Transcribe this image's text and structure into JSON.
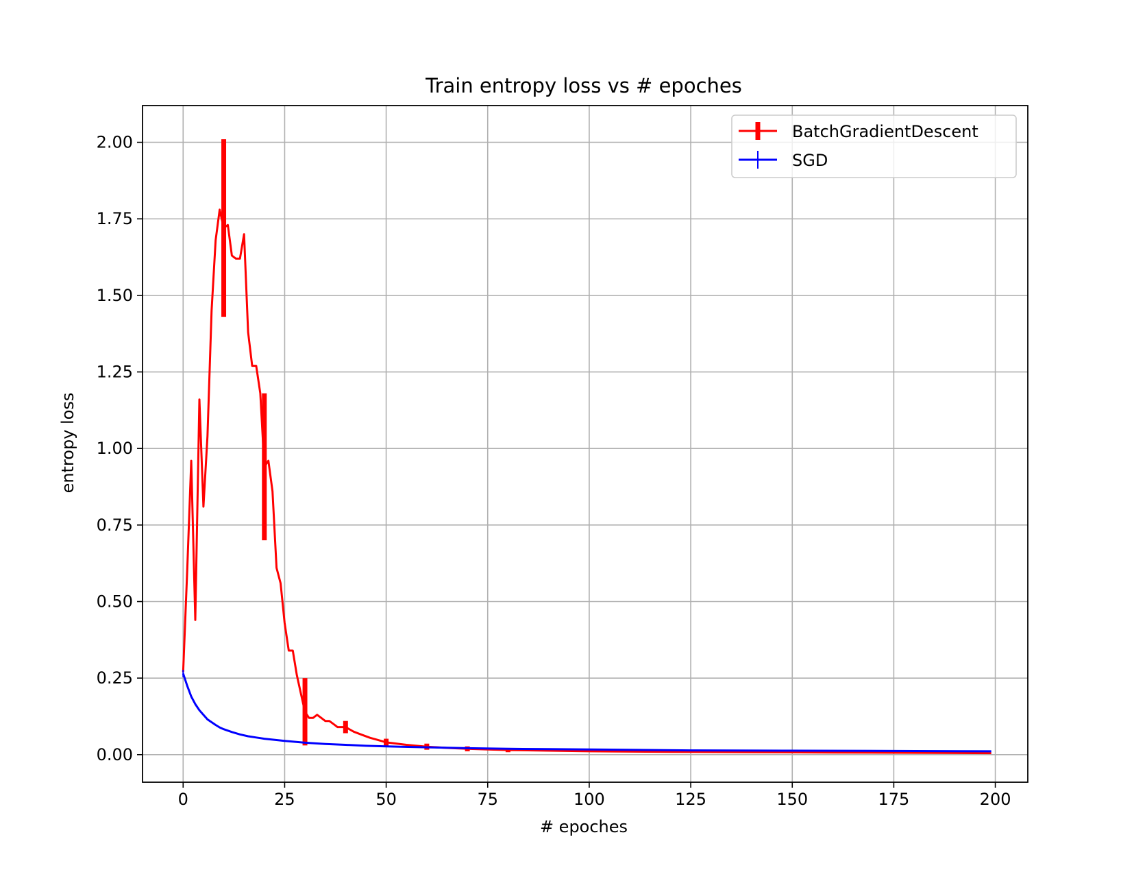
{
  "chart_data": {
    "type": "line",
    "title": "Train entropy loss vs # epoches",
    "xlabel": "# epoches",
    "ylabel": "entropy loss",
    "xlim": [
      -10,
      208
    ],
    "ylim": [
      -0.09,
      2.12
    ],
    "xticks": [
      0,
      25,
      50,
      75,
      100,
      125,
      150,
      175,
      200
    ],
    "yticks": [
      0.0,
      0.25,
      0.5,
      0.75,
      1.0,
      1.25,
      1.5,
      1.75,
      2.0
    ],
    "xtick_labels": [
      "0",
      "25",
      "50",
      "75",
      "100",
      "125",
      "150",
      "175",
      "200"
    ],
    "ytick_labels": [
      "0.00",
      "0.25",
      "0.50",
      "0.75",
      "1.00",
      "1.25",
      "1.50",
      "1.75",
      "2.00"
    ],
    "grid": true,
    "legend_position": "top-right",
    "series": [
      {
        "name": "BatchGradientDescent",
        "color": "#ff0000",
        "errorbar_width": 7,
        "x": [
          0,
          1,
          2,
          3,
          4,
          5,
          6,
          7,
          8,
          9,
          10,
          11,
          12,
          13,
          14,
          15,
          16,
          17,
          18,
          19,
          20,
          21,
          22,
          23,
          24,
          25,
          26,
          27,
          28,
          29,
          30,
          31,
          32,
          33,
          34,
          35,
          36,
          37,
          38,
          39,
          40,
          42,
          44,
          46,
          48,
          50,
          55,
          60,
          65,
          70,
          75,
          80,
          90,
          100,
          120,
          140,
          160,
          180,
          199
        ],
        "y": [
          0.27,
          0.6,
          0.96,
          0.44,
          1.16,
          0.81,
          1.04,
          1.45,
          1.68,
          1.78,
          1.72,
          1.73,
          1.63,
          1.62,
          1.62,
          1.7,
          1.38,
          1.27,
          1.27,
          1.18,
          0.94,
          0.96,
          0.86,
          0.61,
          0.56,
          0.43,
          0.34,
          0.34,
          0.26,
          0.2,
          0.14,
          0.12,
          0.12,
          0.13,
          0.12,
          0.11,
          0.11,
          0.1,
          0.09,
          0.09,
          0.09,
          0.075,
          0.065,
          0.055,
          0.048,
          0.04,
          0.032,
          0.026,
          0.022,
          0.019,
          0.017,
          0.015,
          0.013,
          0.011,
          0.009,
          0.008,
          0.007,
          0.006,
          0.005
        ],
        "errorbars": [
          {
            "x": 10,
            "y": 1.72,
            "err": 0.29
          },
          {
            "x": 20,
            "y": 0.94,
            "err": 0.24
          },
          {
            "x": 30,
            "y": 0.14,
            "err": 0.11
          },
          {
            "x": 40,
            "y": 0.09,
            "err": 0.02
          },
          {
            "x": 50,
            "y": 0.04,
            "err": 0.012
          },
          {
            "x": 60,
            "y": 0.026,
            "err": 0.01
          },
          {
            "x": 70,
            "y": 0.019,
            "err": 0.008
          },
          {
            "x": 80,
            "y": 0.015,
            "err": 0.007
          }
        ]
      },
      {
        "name": "SGD",
        "color": "#0000ff",
        "errorbar_width": 2,
        "x": [
          0,
          1,
          2,
          3,
          4,
          5,
          6,
          7,
          8,
          9,
          10,
          12,
          14,
          16,
          18,
          20,
          25,
          30,
          35,
          40,
          45,
          50,
          60,
          70,
          80,
          90,
          100,
          125,
          150,
          175,
          199
        ],
        "y": [
          0.265,
          0.225,
          0.19,
          0.165,
          0.145,
          0.13,
          0.115,
          0.106,
          0.097,
          0.089,
          0.083,
          0.074,
          0.066,
          0.06,
          0.056,
          0.052,
          0.045,
          0.039,
          0.035,
          0.032,
          0.029,
          0.027,
          0.024,
          0.021,
          0.019,
          0.018,
          0.017,
          0.014,
          0.013,
          0.012,
          0.011
        ],
        "errorbars": [
          {
            "x": 0,
            "y": 0.265,
            "err": 0.012
          }
        ]
      }
    ]
  }
}
